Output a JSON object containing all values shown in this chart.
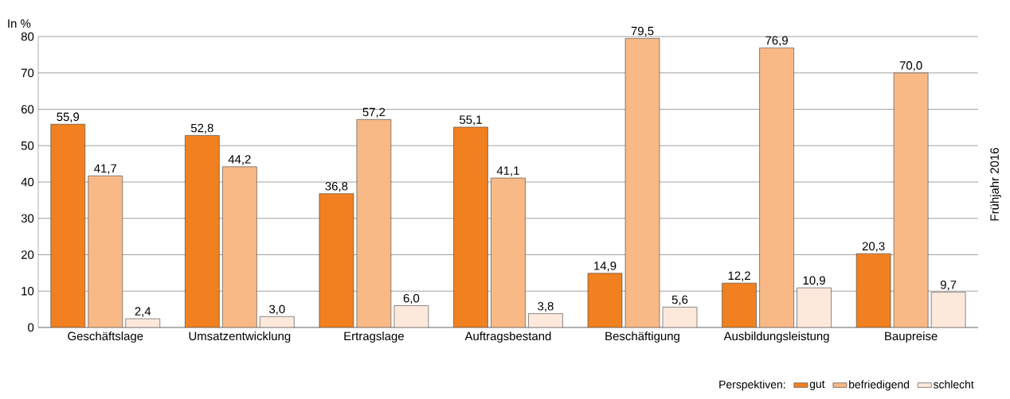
{
  "chart_data": {
    "type": "bar",
    "ylabel": "In %",
    "legend_title": "Perspektiven:",
    "categories": [
      "Geschäftslage",
      "Umsatzentwicklung",
      "Ertragslage",
      "Auftragsbestand",
      "Beschäftigung",
      "Ausbildungsleistung",
      "Baupreise"
    ],
    "series": [
      {
        "name": "gut",
        "color": "#f08020",
        "values": [
          55.9,
          52.8,
          36.8,
          55.1,
          14.9,
          12.2,
          20.3
        ],
        "value_labels": [
          "55,9",
          "52,8",
          "36,8",
          "55,1",
          "14,9",
          "12,2",
          "20,3"
        ]
      },
      {
        "name": "befriedigend",
        "color": "#f8b987",
        "values": [
          41.7,
          44.2,
          57.2,
          41.1,
          79.5,
          76.9,
          70.0
        ],
        "value_labels": [
          "41,7",
          "44,2",
          "57,2",
          "41,1",
          "79,5",
          "76,9",
          "70,0"
        ]
      },
      {
        "name": "schlecht",
        "color": "#fde9dc",
        "values": [
          2.4,
          3.0,
          6.0,
          3.8,
          5.6,
          10.9,
          9.7
        ],
        "value_labels": [
          "2,4",
          "3,0",
          "6,0",
          "3,8",
          "5,6",
          "10,9",
          "9,7"
        ]
      }
    ],
    "ylim": [
      0,
      80
    ],
    "yticks": [
      0,
      10,
      20,
      30,
      40,
      50,
      60,
      70,
      80
    ],
    "grid": "y",
    "legend": "bottom right",
    "annotations": [
      "Frühjahr 2016"
    ]
  }
}
